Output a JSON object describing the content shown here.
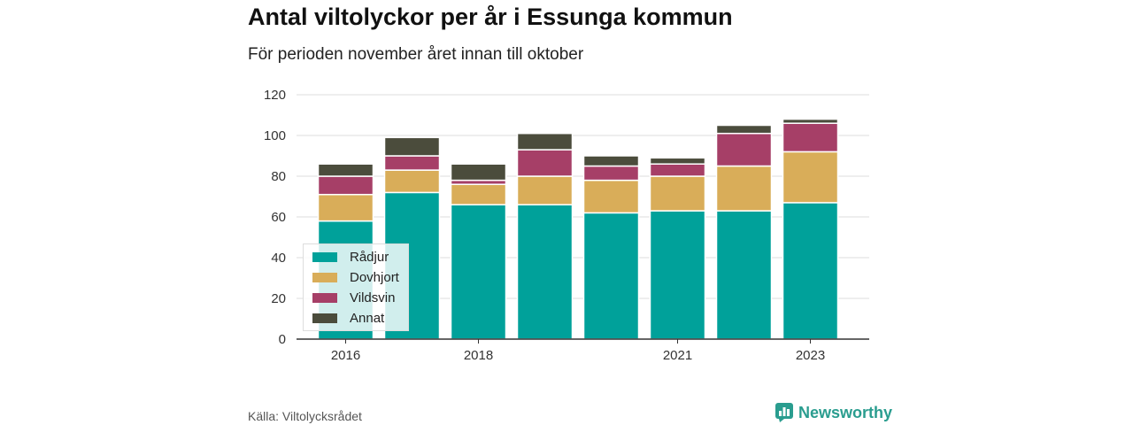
{
  "title": "Antal viltolyckor per år i Essunga kommun",
  "subtitle": "För perioden november året innan till oktober",
  "source": "Källa: Viltolycksrådet",
  "brand": {
    "name": "Newsworthy",
    "icon": "newsworthy-logo-icon",
    "color": "#2a9d8f"
  },
  "chart_data": {
    "type": "bar",
    "stacked": true,
    "categories": [
      "2016",
      "2017",
      "2018",
      "2019",
      "2020",
      "2021",
      "2022",
      "2023"
    ],
    "x_tick_labels": [
      "2016",
      "",
      "2018",
      "",
      "",
      "2021",
      "",
      "2023"
    ],
    "series": [
      {
        "name": "Rådjur",
        "color": "#00a19a",
        "values": [
          58,
          72,
          66,
          66,
          62,
          63,
          63,
          67
        ]
      },
      {
        "name": "Dovhjort",
        "color": "#d9ad59",
        "values": [
          13,
          11,
          10,
          14,
          16,
          17,
          22,
          25
        ]
      },
      {
        "name": "Vildsvin",
        "color": "#a63f67",
        "values": [
          9,
          7,
          2,
          13,
          7,
          6,
          16,
          14
        ]
      },
      {
        "name": "Annat",
        "color": "#4b4c3c",
        "values": [
          6,
          9,
          8,
          8,
          5,
          3,
          4,
          2
        ]
      }
    ],
    "ylim": [
      0,
      120
    ],
    "yticks": [
      0,
      20,
      40,
      60,
      80,
      100,
      120
    ],
    "grid": true,
    "legend_position": "bottom-left"
  }
}
